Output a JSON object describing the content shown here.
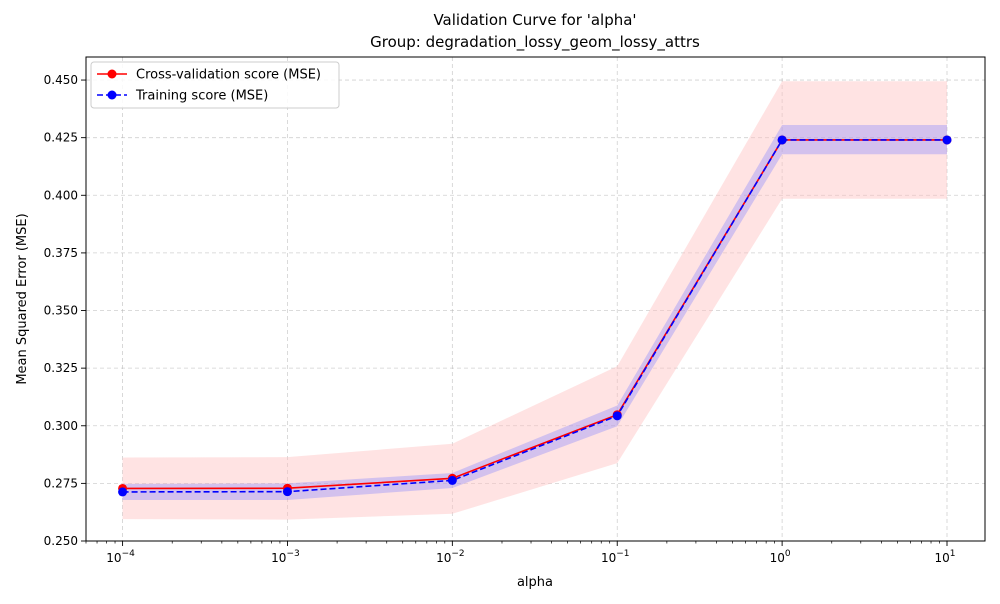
{
  "chart_data": {
    "type": "line",
    "title": "Validation Curve for 'alpha'",
    "subtitle": "Group: degradation_lossy_geom_lossy_attrs",
    "xlabel": "alpha",
    "ylabel": "Mean Squared Error (MSE)",
    "xscale": "log",
    "xlim": [
      6e-05,
      17
    ],
    "ylim": [
      0.25,
      0.46
    ],
    "x_ticks": [
      0.0001,
      0.001,
      0.01,
      0.1,
      1,
      10
    ],
    "x_tick_exponents": [
      "-4",
      "-3",
      "-2",
      "-1",
      "0",
      "1"
    ],
    "y_ticks": [
      0.25,
      0.275,
      0.3,
      0.325,
      0.35,
      0.375,
      0.4,
      0.425,
      0.45
    ],
    "y_tick_labels": [
      "0.250",
      "0.275",
      "0.300",
      "0.325",
      "0.350",
      "0.375",
      "0.400",
      "0.425",
      "0.450"
    ],
    "grid": true,
    "legend_position": "top-left",
    "x": [
      0.0001,
      0.001,
      0.01,
      0.1,
      1,
      10
    ],
    "series": [
      {
        "name": "Cross-validation score (MSE)",
        "color": "#ff0000",
        "band_color": "#ffc0c0",
        "line_style": "solid",
        "marker": "circle",
        "values": [
          0.2728,
          0.2729,
          0.2772,
          0.3048,
          0.424,
          0.424
        ],
        "band_lower": [
          0.2595,
          0.2593,
          0.2618,
          0.2838,
          0.3985,
          0.3985
        ],
        "band_upper": [
          0.2862,
          0.2864,
          0.2922,
          0.3258,
          0.4495,
          0.4495
        ]
      },
      {
        "name": "Training score (MSE)",
        "color": "#0000ff",
        "band_color": "#8080ff",
        "line_style": "dashed",
        "marker": "circle",
        "values": [
          0.2713,
          0.2714,
          0.2763,
          0.3043,
          0.424,
          0.424
        ],
        "band_lower": [
          0.2678,
          0.2678,
          0.273,
          0.2998,
          0.4178,
          0.4178
        ],
        "band_upper": [
          0.2748,
          0.275,
          0.2795,
          0.3088,
          0.4305,
          0.4305
        ]
      }
    ]
  }
}
